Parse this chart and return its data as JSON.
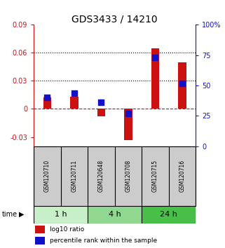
{
  "title": "GDS3433 / 14210",
  "samples": [
    "GSM120710",
    "GSM120711",
    "GSM120648",
    "GSM120708",
    "GSM120715",
    "GSM120716"
  ],
  "log10_ratio": [
    0.012,
    0.013,
    -0.008,
    -0.033,
    0.065,
    0.05
  ],
  "percentile_rank": [
    0.4,
    0.44,
    0.36,
    0.27,
    0.73,
    0.52
  ],
  "time_groups": [
    {
      "label": "1 h",
      "indices": [
        0,
        1
      ],
      "color": "#c8f0c8"
    },
    {
      "label": "4 h",
      "indices": [
        2,
        3
      ],
      "color": "#90d890"
    },
    {
      "label": "24 h",
      "indices": [
        4,
        5
      ],
      "color": "#48c048"
    }
  ],
  "ylim_left": [
    -0.04,
    0.09
  ],
  "ylim_right": [
    0,
    1.0
  ],
  "yticks_left": [
    -0.03,
    0,
    0.03,
    0.06,
    0.09
  ],
  "yticks_right": [
    0,
    0.25,
    0.5,
    0.75,
    1.0
  ],
  "ytick_labels_left": [
    "-0.03",
    "0",
    "0.03",
    "0.06",
    "0.09"
  ],
  "ytick_labels_right": [
    "0",
    "25",
    "50",
    "75",
    "100%"
  ],
  "hlines_dotted": [
    0.03,
    0.06
  ],
  "hline_dashed": 0,
  "bar_color": "#cc1111",
  "dot_color": "#1111cc",
  "bar_width": 0.3,
  "dot_size": 28,
  "bg_color_sample_row": "#cccccc",
  "legend_red_label": "log10 ratio",
  "legend_blue_label": "percentile rank within the sample",
  "title_fontsize": 10,
  "tick_fontsize": 7,
  "sample_fontsize": 5.5,
  "time_fontsize": 8,
  "legend_fontsize": 6.5
}
